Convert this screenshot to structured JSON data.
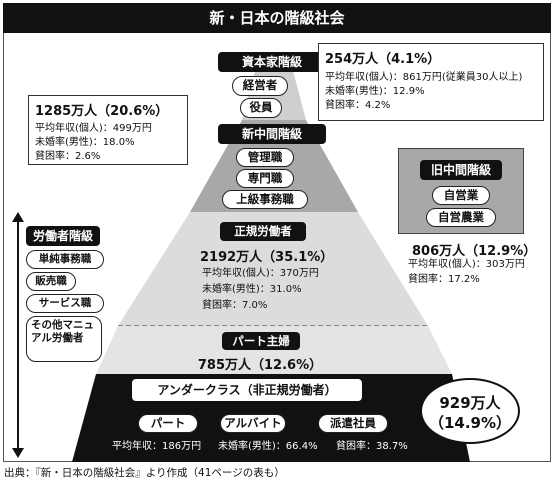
{
  "title": "新・日本の階級社会",
  "capitalist": {
    "label": "資本家階級",
    "roles": [
      "経営者",
      "役員"
    ],
    "count": "254万人（4.1%）",
    "stats": [
      "平均年収(個人)：861万円(従業員30人以上)",
      "未婚率(男性)：12.9%",
      "貧困率：4.2%"
    ]
  },
  "new_middle": {
    "label": "新中間階級",
    "roles": [
      "管理職",
      "専門職",
      "上級事務職"
    ],
    "count": "1285万人（20.6%）",
    "stats": [
      "平均年収(個人)：499万円",
      "未婚率(男性)：18.0%",
      "貧困率：2.6%"
    ]
  },
  "old_middle": {
    "label": "旧中間階級",
    "roles": [
      "自営業",
      "自営農業"
    ],
    "count": "806万人（12.9%）",
    "stats": [
      "平均年収(個人)：303万円",
      "貧困率：17.2%"
    ]
  },
  "working": {
    "label": "労働者階級",
    "roles": [
      "単純事務職",
      "販売職",
      "サービス職",
      "その他マニュアル労働者"
    ]
  },
  "regular": {
    "label": "正規労働者",
    "count": "2192万人（35.1%）",
    "stats": [
      "平均年収(個人)：370万円",
      "未婚率(男性)：31.0%",
      "貧困率：7.0%"
    ]
  },
  "part_time_wife": {
    "label": "パート主婦",
    "count": "785万人（12.6%）"
  },
  "underclass": {
    "label": "アンダークラス（非正規労働者）",
    "roles": [
      "パート",
      "アルバイト",
      "派遣社員"
    ],
    "count": "929万人",
    "percent": "（14.9%）",
    "stats": [
      "平均年収：186万円",
      "未婚率(男性)：66.4%",
      "貧困率：38.7%"
    ]
  },
  "source": "出典：『新・日本の階級社会』より作成（41ページの表も）",
  "colors": {
    "dark": "#111111",
    "light_gray": "#dcdcdc",
    "mid_gray": "#a8a8a8"
  }
}
